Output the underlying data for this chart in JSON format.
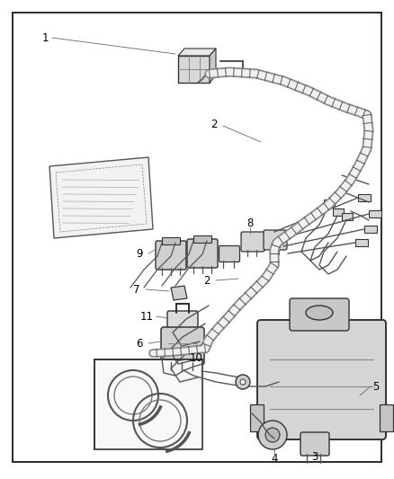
{
  "background_color": "#ffffff",
  "border_color": "#2a2a2a",
  "fig_width": 4.38,
  "fig_height": 5.33,
  "dpi": 100,
  "harness_color": "#444444",
  "harness_fill": "#cccccc",
  "part_edge": "#333333",
  "part_face": "#d5d5d5",
  "label_fs": 8.5,
  "line_color": "#444444"
}
